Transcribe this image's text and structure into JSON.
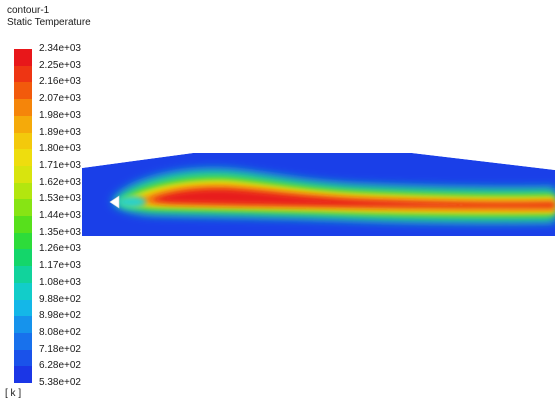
{
  "header": {
    "contour_name": "contour-1",
    "quantity": "Static Temperature"
  },
  "legend": {
    "unit": "[ k ]",
    "labels": [
      "2.34e+03",
      "2.25e+03",
      "2.16e+03",
      "2.07e+03",
      "1.98e+03",
      "1.89e+03",
      "1.80e+03",
      "1.71e+03",
      "1.62e+03",
      "1.53e+03",
      "1.44e+03",
      "1.35e+03",
      "1.26e+03",
      "1.17e+03",
      "1.08e+03",
      "9.88e+02",
      "8.98e+02",
      "8.08e+02",
      "7.18e+02",
      "6.28e+02",
      "5.38e+02"
    ],
    "band_colors": [
      "#e8171a",
      "#ee3513",
      "#f25a0c",
      "#f5850a",
      "#f5aa0a",
      "#f3c90c",
      "#eedd0e",
      "#d8e40e",
      "#b3e60f",
      "#87e414",
      "#57e01c",
      "#2ddc3a",
      "#14d66a",
      "#11d39c",
      "#12cdc9",
      "#14b7e8",
      "#1693ec",
      "#1871ec",
      "#1a52ea",
      "#1b36e6"
    ]
  },
  "colors": {
    "domain_background": "#1a3fe8",
    "inlet_body": "#ffffff",
    "text": "#1a1a1a"
  }
}
